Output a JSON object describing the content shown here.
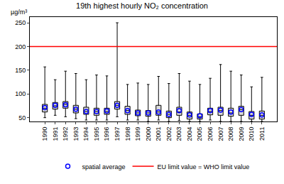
{
  "chart_data": {
    "type": "box",
    "title": "19th highest hourly NO₂ concentration",
    "y_label": "µg/m³",
    "categories": [
      "1990",
      "1991",
      "1992",
      "1993",
      "1994",
      "1995",
      "1996",
      "1997",
      "1998",
      "1999",
      "2000",
      "2001",
      "2002",
      "2003",
      "2004",
      "2005",
      "2006",
      "2007",
      "2008",
      "2009",
      "2010",
      "2011"
    ],
    "q1": [
      62,
      68,
      70,
      60,
      57,
      55,
      57,
      68,
      57,
      54,
      53,
      55,
      50,
      55,
      47,
      47,
      56,
      55,
      53,
      55,
      47,
      47
    ],
    "median": [
      70,
      75,
      78,
      68,
      63,
      63,
      63,
      76,
      65,
      60,
      60,
      62,
      57,
      62,
      55,
      52,
      63,
      65,
      60,
      67,
      55,
      55
    ],
    "q3": [
      78,
      82,
      84,
      76,
      72,
      70,
      70,
      84,
      74,
      66,
      65,
      76,
      64,
      72,
      62,
      58,
      70,
      72,
      70,
      74,
      63,
      64
    ],
    "lowerfence": [
      50,
      55,
      52,
      48,
      45,
      45,
      45,
      52,
      45,
      45,
      42,
      45,
      42,
      44,
      42,
      42,
      45,
      42,
      42,
      42,
      42,
      42
    ],
    "upperfence": [
      157,
      130,
      148,
      143,
      130,
      140,
      138,
      250,
      120,
      123,
      120,
      137,
      122,
      143,
      127,
      120,
      133,
      162,
      148,
      140,
      115,
      135
    ],
    "color": "#d9d9d9",
    "mean": {
      "name": "spatial average",
      "color": "#0000ff",
      "marker": "circle-open",
      "values": [
        71,
        76,
        77,
        68,
        63,
        63,
        64,
        76,
        65,
        60,
        60,
        62,
        57,
        65,
        56,
        54,
        65,
        66,
        62,
        67,
        57,
        56
      ]
    },
    "reference_line": {
      "name": "EU limit value = WHO limit value",
      "value": 200,
      "color": "#ff0000"
    },
    "ylim": [
      42,
      262
    ],
    "yticks": [
      50,
      100,
      150,
      200,
      250
    ],
    "grid": false,
    "legend": "bottom"
  }
}
